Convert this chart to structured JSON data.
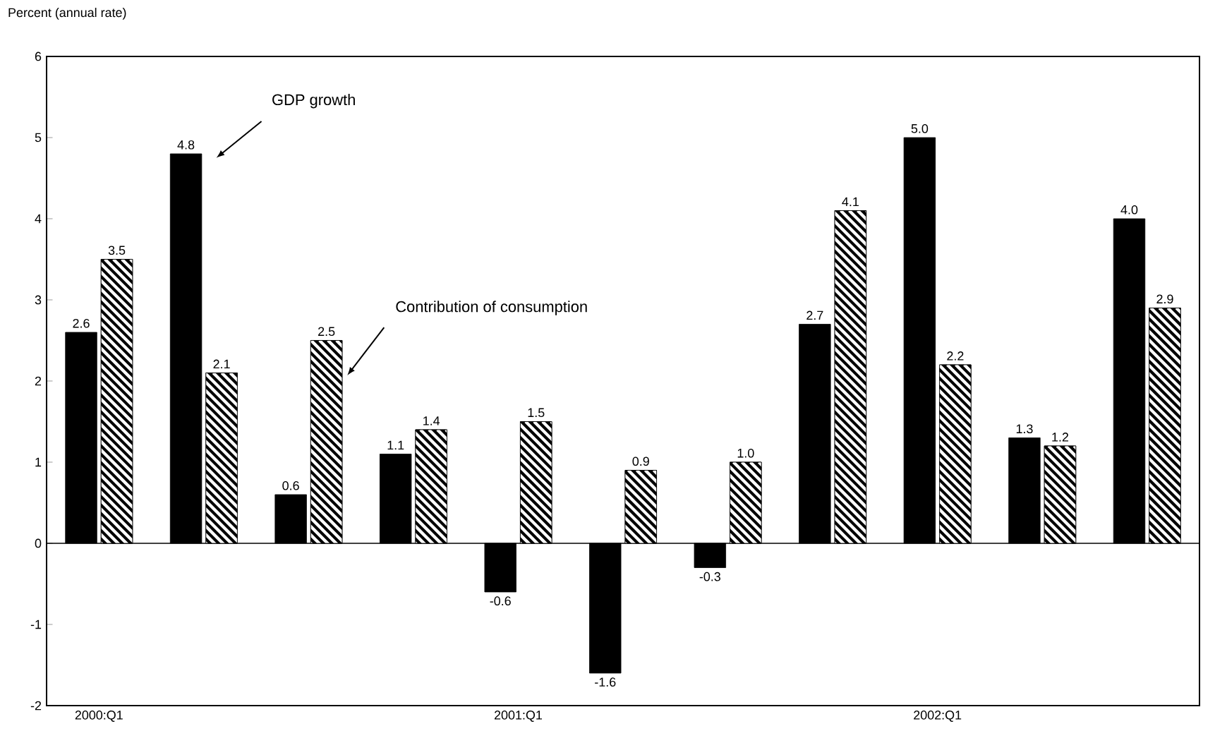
{
  "chart_data": {
    "type": "bar",
    "ylabel": "Percent (annual rate)",
    "categories": [
      "2000:Q1",
      null,
      null,
      null,
      "2001:Q1",
      null,
      null,
      null,
      "2002:Q1",
      null,
      null
    ],
    "series": [
      {
        "name": null,
        "color": "#000000",
        "values": [
          2.6,
          4.8,
          0.6,
          1.1,
          -0.6,
          -1.6,
          -0.3,
          2.7,
          5.0,
          1.3,
          4.0
        ],
        "value_labels": [
          "2.6",
          "4.8",
          "0.6",
          "1.1",
          "-0.6",
          "-1.6",
          "-0.3",
          "2.7",
          "5.0",
          "1.3",
          "4.0"
        ]
      },
      {
        "name": null,
        "color": "#000000",
        "values": [
          3.5,
          2.1,
          2.5,
          1.4,
          1.5,
          0.9,
          1.0,
          4.1,
          2.2,
          1.2,
          2.9
        ],
        "value_labels": [
          "3.5",
          "2.1",
          "2.5",
          "1.4",
          "1.5",
          "0.9",
          "1.0",
          "4.1",
          "2.2",
          "1.2",
          "2.9"
        ]
      }
    ],
    "ylim": [
      -2,
      6
    ],
    "yticks": [
      -2,
      -1,
      0,
      1,
      2,
      3,
      4,
      5,
      6
    ],
    "annotations": [
      "GDP growth",
      "Contribution of consumption"
    ]
  }
}
